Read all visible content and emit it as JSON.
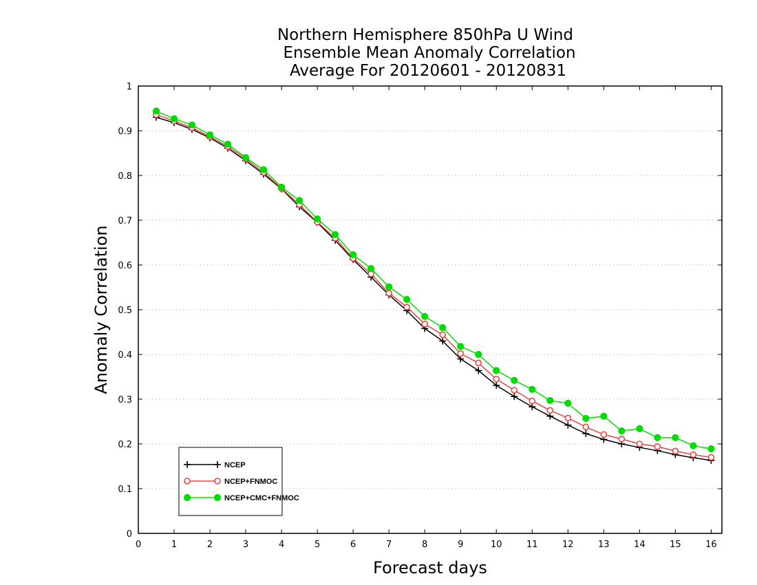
{
  "chart_data": {
    "type": "line",
    "title": [
      "Northern Hemisphere 850hPa U Wind",
      "Ensemble Mean Anomaly Correlation",
      "Average For 20120601 - 20120831"
    ],
    "xlabel": "Forecast days",
    "ylabel": "Anomaly Correlation",
    "xlim": [
      0,
      16.3
    ],
    "ylim": [
      0,
      1
    ],
    "xticks": [
      0,
      1,
      2,
      3,
      4,
      5,
      6,
      7,
      8,
      9,
      10,
      11,
      12,
      13,
      14,
      15,
      16
    ],
    "yticks": [
      0,
      0.1,
      0.2,
      0.3,
      0.4,
      0.5,
      0.6,
      0.7,
      0.8,
      0.9,
      1
    ],
    "ytick_labels": [
      "0",
      "0.1",
      "0.2",
      "0.3",
      "0.4",
      "0.5",
      "0.6",
      "0.7",
      "0.8",
      "0.9",
      "1"
    ],
    "grid": "horizontal dotted",
    "legend_position": "bottom-left",
    "x": [
      0.5,
      1,
      1.5,
      2,
      2.5,
      3,
      3.5,
      4,
      4.5,
      5,
      5.5,
      6,
      6.5,
      7,
      7.5,
      8,
      8.5,
      9,
      9.5,
      10,
      10.5,
      11,
      11.5,
      12,
      12.5,
      13,
      13.5,
      14,
      14.5,
      15,
      15.5,
      16
    ],
    "series": [
      {
        "name": "NCEP",
        "color": "#000000",
        "marker": "plus",
        "values": [
          0.93,
          0.918,
          0.903,
          0.884,
          0.861,
          0.833,
          0.803,
          0.77,
          0.73,
          0.695,
          0.655,
          0.612,
          0.573,
          0.533,
          0.498,
          0.458,
          0.43,
          0.39,
          0.364,
          0.331,
          0.306,
          0.283,
          0.262,
          0.242,
          0.223,
          0.21,
          0.2,
          0.192,
          0.185,
          0.176,
          0.169,
          0.163
        ]
      },
      {
        "name": "NCEP+FNMOC",
        "color": "#e84444",
        "marker": "open-circle",
        "values": [
          0.936,
          0.922,
          0.907,
          0.887,
          0.865,
          0.837,
          0.807,
          0.771,
          0.735,
          0.696,
          0.66,
          0.615,
          0.58,
          0.537,
          0.506,
          0.468,
          0.444,
          0.402,
          0.381,
          0.345,
          0.32,
          0.296,
          0.275,
          0.258,
          0.238,
          0.221,
          0.211,
          0.2,
          0.194,
          0.184,
          0.176,
          0.17
        ]
      },
      {
        "name": "NCEP+CMC+FNMOC",
        "color": "#00dd00",
        "marker": "filled-circle",
        "values": [
          0.944,
          0.927,
          0.913,
          0.891,
          0.87,
          0.84,
          0.813,
          0.774,
          0.744,
          0.703,
          0.668,
          0.623,
          0.592,
          0.551,
          0.523,
          0.485,
          0.46,
          0.418,
          0.4,
          0.364,
          0.342,
          0.322,
          0.297,
          0.291,
          0.257,
          0.262,
          0.229,
          0.234,
          0.214,
          0.214,
          0.196,
          0.189
        ]
      }
    ]
  }
}
